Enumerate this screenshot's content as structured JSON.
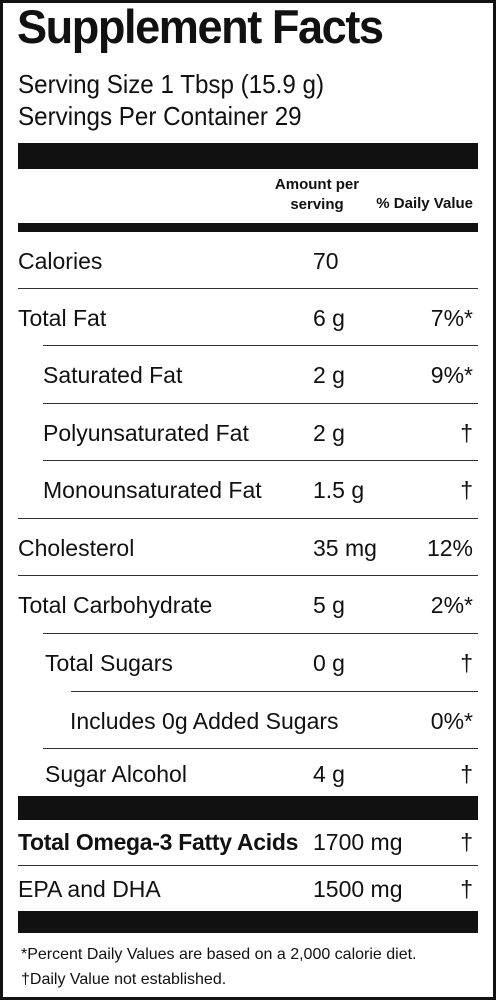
{
  "title": "Supplement Facts",
  "serving_size": "Serving Size 1 Tbsp (15.9 g)",
  "servings_per_container": "Servings Per Container 29",
  "header": {
    "amount_line1": "Amount per",
    "amount_line2": "serving",
    "daily_value": "% Daily Value"
  },
  "rows": [
    {
      "name": "Calories",
      "amount": "70",
      "dv": ""
    },
    {
      "name": "Total Fat",
      "amount": "6 g",
      "dv": "7%*"
    },
    {
      "name": "Saturated Fat",
      "amount": "2 g",
      "dv": "9%*"
    },
    {
      "name": "Polyunsaturated Fat",
      "amount": "2 g",
      "dv": "†"
    },
    {
      "name": "Monounsaturated Fat",
      "amount": "1.5 g",
      "dv": "†"
    },
    {
      "name": "Cholesterol",
      "amount": "35 mg",
      "dv": "12%"
    },
    {
      "name": "Total Carbohydrate",
      "amount": "5 g",
      "dv": "2%*"
    },
    {
      "name": "Total Sugars",
      "amount": "0 g",
      "dv": "†"
    },
    {
      "name": "Includes 0g Added Sugars",
      "amount": "",
      "dv": "0%*"
    },
    {
      "name": "Sugar Alcohol",
      "amount": "4 g",
      "dv": "†"
    }
  ],
  "omega_rows": [
    {
      "name": "Total Omega-3 Fatty Acids",
      "amount": "1700 mg",
      "dv": "†"
    },
    {
      "name": "EPA and DHA",
      "amount": "1500 mg",
      "dv": "†"
    }
  ],
  "footnotes": [
    "*Percent Daily Values are based on a 2,000 calorie diet.",
    "†Daily Value not established."
  ]
}
